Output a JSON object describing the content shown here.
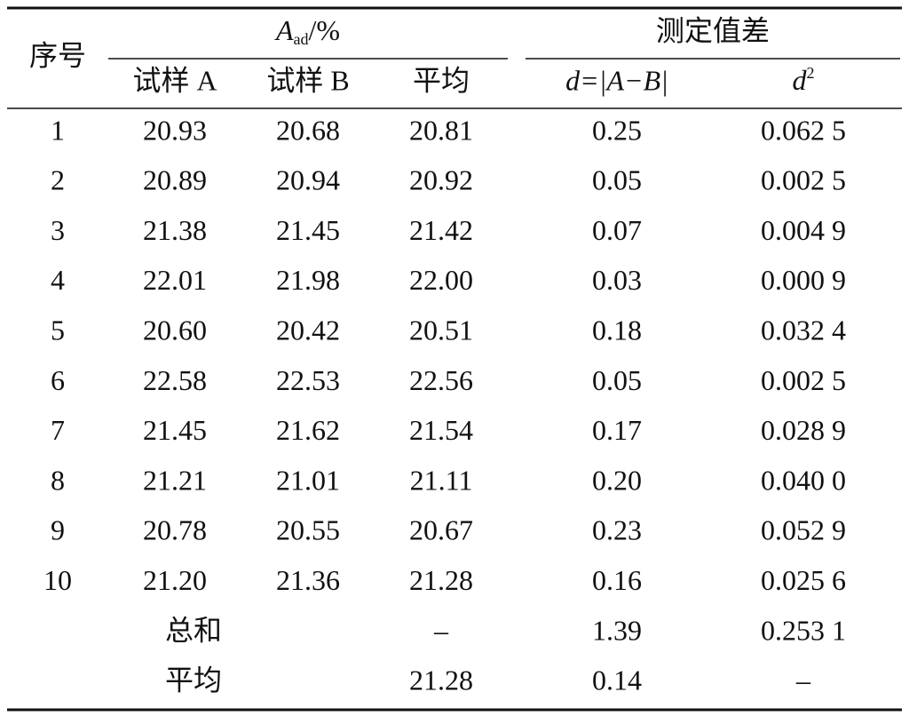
{
  "table": {
    "header": {
      "index": "序号",
      "group_a": {
        "symbol": "A",
        "subscript": "ad",
        "suffix": "/%"
      },
      "group_b": "测定值差",
      "columns": [
        "试样 A",
        "试样 B",
        "平均",
        "d=|A−B|",
        {
          "symbol": "d",
          "superscript": "2"
        }
      ]
    },
    "rows": [
      [
        "1",
        "20.93",
        "20.68",
        "20.81",
        "0.25",
        "0.062 5"
      ],
      [
        "2",
        "20.89",
        "20.94",
        "20.92",
        "0.05",
        "0.002 5"
      ],
      [
        "3",
        "21.38",
        "21.45",
        "21.42",
        "0.07",
        "0.004 9"
      ],
      [
        "4",
        "22.01",
        "21.98",
        "22.00",
        "0.03",
        "0.000 9"
      ],
      [
        "5",
        "20.60",
        "20.42",
        "20.51",
        "0.18",
        "0.032 4"
      ],
      [
        "6",
        "22.58",
        "22.53",
        "22.56",
        "0.05",
        "0.002 5"
      ],
      [
        "7",
        "21.45",
        "21.62",
        "21.54",
        "0.17",
        "0.028 9"
      ],
      [
        "8",
        "21.21",
        "21.01",
        "21.11",
        "0.20",
        "0.040 0"
      ],
      [
        "9",
        "20.78",
        "20.55",
        "20.67",
        "0.23",
        "0.052 9"
      ],
      [
        "10",
        "21.20",
        "21.36",
        "21.28",
        "0.16",
        "0.025 6"
      ]
    ],
    "summary": [
      {
        "label": "总和",
        "average": "–",
        "d": "1.39",
        "d2": "0.253 1"
      },
      {
        "label": "平均",
        "average": "21.28",
        "d": "0.14",
        "d2": "–"
      }
    ]
  }
}
